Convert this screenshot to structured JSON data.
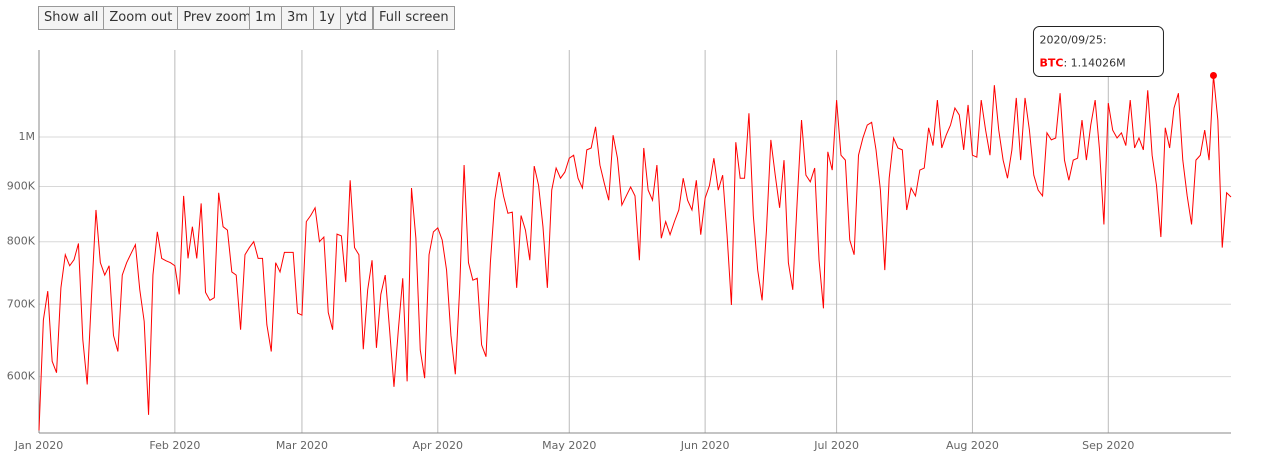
{
  "buttons": [
    "Show all",
    "Zoom out",
    "Prev zoom",
    "1m",
    "3m",
    "1y",
    "ytd",
    "Full screen"
  ],
  "chart_data": {
    "type": "line",
    "log_scale": true,
    "grid": true,
    "categories": [
      "Jan 2020",
      null,
      null,
      null,
      null,
      null,
      null,
      null,
      null,
      null,
      null,
      null,
      null,
      null,
      null,
      null,
      null,
      null,
      null,
      null,
      null,
      null,
      null,
      null,
      null,
      null,
      null,
      null,
      null,
      null,
      null,
      "Feb 2020",
      null,
      null,
      null,
      null,
      null,
      null,
      null,
      null,
      null,
      null,
      null,
      null,
      null,
      null,
      null,
      null,
      null,
      null,
      null,
      null,
      null,
      null,
      null,
      null,
      null,
      null,
      null,
      null,
      "Mar 2020",
      null,
      null,
      null,
      null,
      null,
      null,
      null,
      null,
      null,
      null,
      null,
      null,
      null,
      null,
      null,
      null,
      null,
      null,
      null,
      null,
      null,
      null,
      null,
      null,
      null,
      null,
      null,
      null,
      null,
      null,
      "Apr 2020",
      null,
      null,
      null,
      null,
      null,
      null,
      null,
      null,
      null,
      null,
      null,
      null,
      null,
      null,
      null,
      null,
      null,
      null,
      null,
      null,
      null,
      null,
      null,
      null,
      null,
      null,
      null,
      null,
      null,
      "May 2020",
      null,
      null,
      null,
      null,
      null,
      null,
      null,
      null,
      null,
      null,
      null,
      null,
      null,
      null,
      null,
      null,
      null,
      null,
      null,
      null,
      null,
      null,
      null,
      null,
      null,
      null,
      null,
      null,
      null,
      null,
      "Jun 2020",
      null,
      null,
      null,
      null,
      null,
      null,
      null,
      null,
      null,
      null,
      null,
      null,
      null,
      null,
      null,
      null,
      null,
      null,
      null,
      null,
      null,
      null,
      null,
      null,
      null,
      null,
      null,
      null,
      null,
      "Jul 2020",
      null,
      null,
      null,
      null,
      null,
      null,
      null,
      null,
      null,
      null,
      null,
      null,
      null,
      null,
      null,
      null,
      null,
      null,
      null,
      null,
      null,
      null,
      null,
      null,
      null,
      null,
      null,
      null,
      null,
      null,
      "Aug 2020",
      null,
      null,
      null,
      null,
      null,
      null,
      null,
      null,
      null,
      null,
      null,
      null,
      null,
      null,
      null,
      null,
      null,
      null,
      null,
      null,
      null,
      null,
      null,
      null,
      null,
      null,
      null,
      null,
      null,
      null,
      "Sep 2020",
      null,
      null,
      null,
      null,
      null,
      null,
      null,
      null,
      null,
      null,
      null,
      null,
      null,
      null,
      null,
      null,
      null,
      null,
      null,
      null,
      null,
      null,
      null,
      null,
      null,
      null,
      null,
      null
    ],
    "series": [
      {
        "name": "BTC",
        "color": "#ff0000",
        "values": [
          535000,
          677000,
          720000,
          620000,
          605000,
          725000,
          778000,
          760000,
          770000,
          797000,
          649000,
          590000,
          715000,
          856000,
          765000,
          745000,
          760000,
          655000,
          633000,
          745000,
          765000,
          780000,
          795000,
          722000,
          675000,
          553000,
          745000,
          817000,
          772000,
          768000,
          765000,
          760000,
          715000,
          882000,
          772000,
          826000,
          772000,
          868000,
          718000,
          706000,
          710000,
          888000,
          826000,
          820000,
          750000,
          745000,
          663000,
          778000,
          790000,
          800000,
          772000,
          772000,
          670000,
          633000,
          765000,
          750000,
          782000,
          782000,
          782000,
          687000,
          684000,
          835000,
          846000,
          860000,
          800000,
          808000,
          688000,
          663000,
          813000,
          810000,
          734000,
          912000,
          790000,
          778000,
          636000,
          722000,
          769000,
          638000,
          715000,
          745000,
          663000,
          587000,
          663000,
          740000,
          594000,
          897000,
          806000,
          635000,
          598000,
          778000,
          817000,
          824000,
          803000,
          753000,
          655000,
          603000,
          725000,
          942000,
          765000,
          737000,
          740000,
          642000,
          626000,
          765000,
          874000,
          928000,
          882000,
          850000,
          852000,
          725000,
          846000,
          820000,
          769000,
          940000,
          902000,
          826000,
          725000,
          893000,
          936000,
          916000,
          928000,
          956000,
          962000,
          916000,
          897000,
          973000,
          977000,
          1022000,
          942000,
          906000,
          874000,
          1004000,
          956000,
          865000,
          882000,
          899000,
          882000,
          769000,
          977000,
          893000,
          874000,
          942000,
          806000,
          835000,
          812000,
          835000,
          856000,
          916000,
          874000,
          856000,
          912000,
          812000,
          878000,
          902000,
          956000,
          893000,
          922000,
          812000,
          699000,
          989000,
          916000,
          916000,
          1052000,
          846000,
          753000,
          706000,
          820000,
          994000,
          922000,
          860000,
          952000,
          765000,
          722000,
          871000,
          1037000,
          922000,
          909000,
          936000,
          769000,
          694000,
          969000,
          932000,
          1082000,
          962000,
          952000,
          803000,
          778000,
          962000,
          998000,
          1026000,
          1032000,
          973000,
          893000,
          753000,
          916000,
          998000,
          977000,
          973000,
          856000,
          897000,
          882000,
          932000,
          936000,
          1020000,
          982000,
          1082000,
          977000,
          1004000,
          1026000,
          1064000,
          1048000,
          973000,
          1071000,
          962000,
          958000,
          1082000,
          1015000,
          962000,
          1117000,
          1015000,
          952000,
          916000,
          973000,
          1087000,
          952000,
          1087000,
          1015000,
          922000,
          893000,
          882000,
          1009000,
          994000,
          998000,
          1098000,
          952000,
          912000,
          952000,
          956000,
          1037000,
          952000,
          1026000,
          1082000,
          973000,
          830000,
          1075000,
          1015000,
          998000,
          1009000,
          982000,
          1082000,
          977000,
          998000,
          973000,
          1105000,
          962000,
          902000,
          808000,
          1020000,
          977000,
          1064000,
          1098000,
          952000,
          882000,
          830000,
          952000,
          962000,
          1015000,
          952000,
          1140260,
          1037000,
          790000,
          888000,
          880000
        ]
      }
    ],
    "ylim": [
      532000,
      1204000
    ],
    "yticks": [
      {
        "value": 600000,
        "label": "600K"
      },
      {
        "value": 700000,
        "label": "700K"
      },
      {
        "value": 800000,
        "label": "800K"
      },
      {
        "value": 900000,
        "label": "900K"
      },
      {
        "value": 1000000,
        "label": "1M"
      }
    ],
    "tooltip": {
      "title": "2020/09/25:",
      "separator": ": ",
      "value": "1.14026M"
    }
  }
}
